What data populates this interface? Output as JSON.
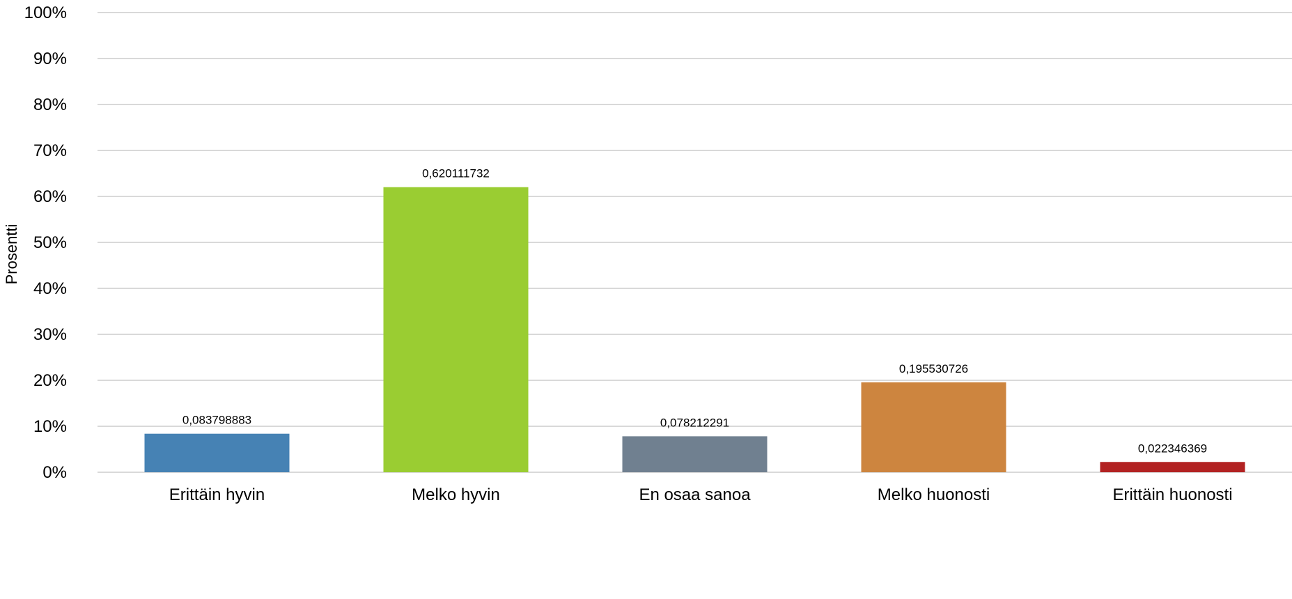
{
  "chart_data": {
    "type": "bar",
    "title": "",
    "xlabel": "",
    "ylabel": "Prosentti",
    "ylim": [
      0,
      1
    ],
    "yticks": [
      0,
      0.1,
      0.2,
      0.3,
      0.4,
      0.5,
      0.6,
      0.7,
      0.8,
      0.9,
      1.0
    ],
    "ytick_labels": [
      "0%",
      "10%",
      "20%",
      "30%",
      "40%",
      "50%",
      "60%",
      "70%",
      "80%",
      "90%",
      "100%"
    ],
    "grid": true,
    "legend": "none",
    "categories": [
      "Erittäin hyvin",
      "Melko hyvin",
      "En osaa sanoa",
      "Melko huonosti",
      "Erittäin huonosti"
    ],
    "values": [
      0.083798883,
      0.620111732,
      0.078212291,
      0.195530726,
      0.022346369
    ],
    "data_labels": [
      "0,083798883",
      "0,620111732",
      "0,078212291",
      "0,195530726",
      "0,022346369"
    ],
    "colors": [
      "#4682b4",
      "#9acd32",
      "#708090",
      "#cd853f",
      "#b22222"
    ],
    "gridline_color": "#d9d9d9"
  }
}
